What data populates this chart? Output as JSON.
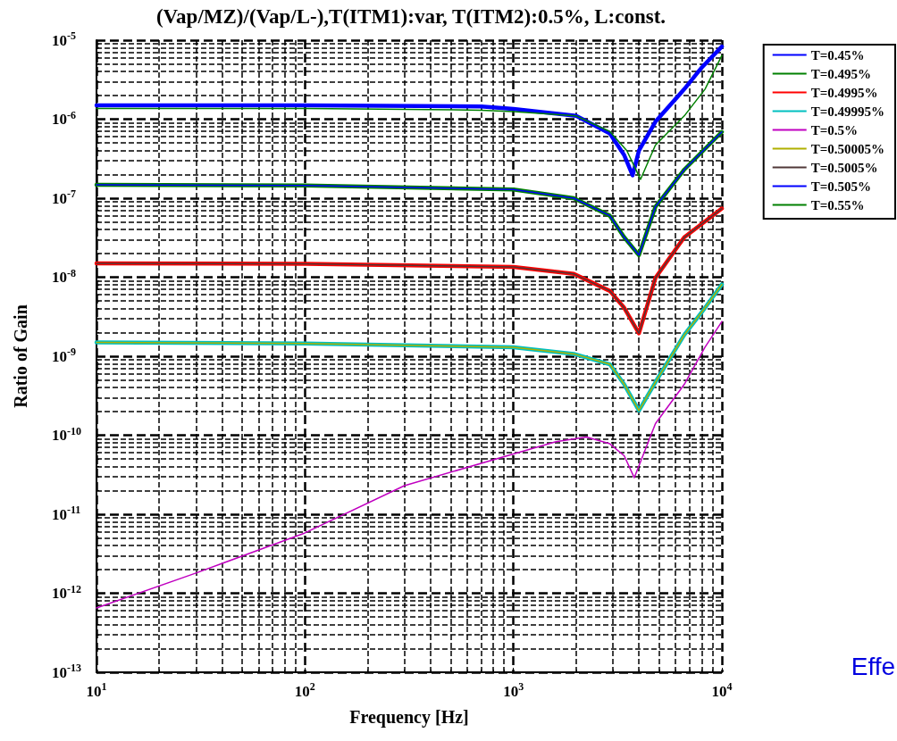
{
  "chart_data": {
    "type": "line",
    "title": "(Vap/MZ)/(Vap/L-),T(ITM1):var, T(ITM2):0.5%, L:const.",
    "xlabel": "Frequency [Hz]",
    "ylabel": "Ratio of Gain",
    "log": "xy",
    "grid": true,
    "legend": "top right",
    "marker": "none",
    "line_style": "solid",
    "xlim": [
      10,
      10000
    ],
    "xticks": [
      {
        "value": 10,
        "label": "10$^{1}$"
      },
      {
        "value": 100,
        "label": "10$^{2}$"
      },
      {
        "value": 1000,
        "label": "10$^{3}$"
      },
      {
        "value": 10000,
        "label": "10$^{4}$"
      }
    ],
    "ylim": [
      1e-13,
      1e-05
    ],
    "yticks": [
      {
        "value": 1e-13,
        "label": "10$^{-13}$"
      },
      {
        "value": 1e-12,
        "label": "10$^{-12}$"
      },
      {
        "value": 1e-11,
        "label": "10$^{-11}$"
      },
      {
        "value": 1e-10,
        "label": "10$^{-10}$"
      },
      {
        "value": 1e-09,
        "label": "10$^{-9}$"
      },
      {
        "value": 1e-08,
        "label": "10$^{-8}$"
      },
      {
        "value": 1e-07,
        "label": "10$^{-7}$"
      },
      {
        "value": 1e-06,
        "label": "10$^{-6}$"
      },
      {
        "value": 1e-05,
        "label": "10$^{-5}$"
      }
    ],
    "annotations": [
      "Effe"
    ],
    "series": [
      {
        "name": "T=0.45%",
        "color": "#0000ff",
        "x": [
          10,
          100,
          700,
          1000,
          2000,
          2900,
          3400,
          3730,
          4000,
          4800,
          6600,
          8000,
          10000
        ],
        "values": [
          1.5e-06,
          1.5e-06,
          1.45e-06,
          1.35e-06,
          1.1e-06,
          6.6e-07,
          3.5e-07,
          1.95e-07,
          4e-07,
          9.3e-07,
          2.4e-06,
          4.5e-06,
          8.3e-06
        ]
      },
      {
        "name": "T=0.495%",
        "color": "#008000",
        "x": [
          10,
          100,
          1000,
          1950,
          2900,
          3400,
          4000,
          4800,
          6600,
          10000
        ],
        "values": [
          1.48e-07,
          1.45e-07,
          1.29e-07,
          1e-07,
          6e-08,
          3.2e-08,
          1.9e-08,
          7.8e-08,
          2.3e-07,
          6.9e-07
        ]
      },
      {
        "name": "T=0.4995%",
        "color": "#ff0000",
        "x": [
          10,
          100,
          1000,
          1950,
          2900,
          3400,
          4000,
          4800,
          6600,
          10000
        ],
        "values": [
          1.5e-08,
          1.48e-08,
          1.35e-08,
          1.1e-08,
          6.7e-09,
          4.1e-09,
          1.95e-09,
          9.8e-09,
          3.2e-08,
          7.4e-08
        ]
      },
      {
        "name": "T=0.49995%",
        "color": "#00c0c0",
        "x": [
          10,
          100,
          1000,
          1950,
          2900,
          3400,
          4000,
          4800,
          6600,
          8300,
          10000
        ],
        "values": [
          1.5e-09,
          1.45e-09,
          1.3e-09,
          1.07e-09,
          7.9e-10,
          4.4e-10,
          2.05e-10,
          4.7e-10,
          1.86e-09,
          4.1e-09,
          8.1e-09
        ]
      },
      {
        "name": "T=0.5%",
        "color": "#c000c0",
        "x": [
          10,
          30,
          100,
          300,
          1000,
          1600,
          2240,
          2900,
          3400,
          3800,
          4800,
          6600,
          8300,
          10000
        ],
        "values": [
          6.5e-13,
          1.8e-12,
          5.8e-12,
          2.3e-11,
          5.8e-11,
          8.3e-11,
          9.5e-11,
          7.8e-11,
          5.5e-11,
          2.9e-11,
          1.4e-10,
          4.4e-10,
          1.3e-09,
          2.75e-09
        ]
      },
      {
        "name": "T=0.50005%",
        "color": "#b0b000",
        "x": [
          10,
          100,
          1000,
          1950,
          2900,
          3400,
          4000,
          4800,
          6600,
          8300,
          10000
        ],
        "values": [
          1.5e-09,
          1.45e-09,
          1.3e-09,
          1.07e-09,
          7.9e-10,
          4.4e-10,
          2.05e-10,
          4.7e-10,
          1.86e-09,
          4.1e-09,
          8.1e-09
        ]
      },
      {
        "name": "T=0.5005%",
        "color": "#503838",
        "x": [
          10,
          100,
          1000,
          1950,
          2900,
          3400,
          4000,
          4800,
          6600,
          10000
        ],
        "values": [
          1.5e-08,
          1.48e-08,
          1.35e-08,
          1.1e-08,
          6.7e-09,
          4.1e-09,
          1.95e-09,
          9.8e-09,
          3.2e-08,
          7.4e-08
        ]
      },
      {
        "name": "T=0.505%",
        "color": "#0000ff",
        "x": [
          10,
          100,
          1000,
          1950,
          2900,
          3400,
          4000,
          4800,
          6600,
          10000
        ],
        "values": [
          1.48e-07,
          1.45e-07,
          1.29e-07,
          1e-07,
          6e-08,
          3.2e-08,
          1.9e-08,
          7.8e-08,
          2.3e-07,
          6.9e-07
        ]
      },
      {
        "name": "T=0.55%",
        "color": "#008000",
        "x": [
          10,
          100,
          700,
          1000,
          2000,
          2900,
          3500,
          4070,
          4800,
          6600,
          8300,
          10000
        ],
        "values": [
          1.37e-06,
          1.37e-06,
          1.3e-06,
          1.25e-06,
          1.1e-06,
          7e-07,
          4e-07,
          1.73e-07,
          4.7e-07,
          1.1e-06,
          2.4e-06,
          6.4e-06
        ]
      }
    ]
  }
}
